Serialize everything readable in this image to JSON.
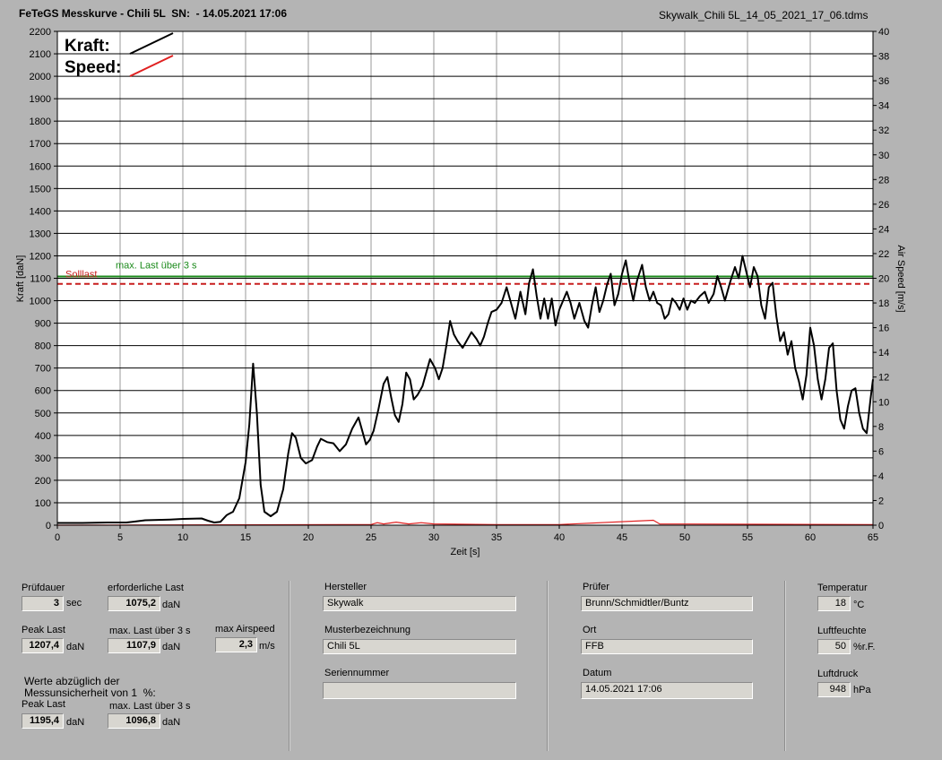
{
  "window": {
    "title": "FeTeGS Messkurve - Chili 5L  SN:  - 14.05.2021 17:06",
    "filename": "Skywalk_Chili 5L_14_05_2021_17_06.tdms"
  },
  "chart_data": {
    "type": "line",
    "xlabel": "Zeit [s]",
    "ylabel": "Kraft [daN]",
    "y2label": "Air Speed [m/s]",
    "xlim": [
      0,
      65
    ],
    "ylim": [
      0,
      2200
    ],
    "y2lim": [
      0,
      40
    ],
    "xticks": [
      "0",
      "5",
      "10",
      "15",
      "20",
      "25",
      "30",
      "35",
      "40",
      "45",
      "50",
      "55",
      "60",
      "65"
    ],
    "yticks": [
      "0",
      "100",
      "200",
      "300",
      "400",
      "500",
      "600",
      "700",
      "800",
      "900",
      "1000",
      "1100",
      "1200",
      "1300",
      "1400",
      "1500",
      "1600",
      "1700",
      "1800",
      "1900",
      "2000",
      "2100",
      "2200"
    ],
    "y2ticks": [
      "0",
      "2",
      "4",
      "6",
      "8",
      "10",
      "12",
      "14",
      "16",
      "18",
      "20",
      "22",
      "24",
      "26",
      "28",
      "30",
      "32",
      "34",
      "36",
      "38",
      "40"
    ],
    "grid": true,
    "legend": [
      "Kraft:",
      "Speed:"
    ],
    "legend_colors": [
      "#000000",
      "#e02020"
    ],
    "reference_lines": [
      {
        "name": "max. Last über  3 s",
        "value": 1107.9,
        "color": "#1a8a1a",
        "style": "solid"
      },
      {
        "name": "Solllast",
        "value": 1075.2,
        "color": "#c81e1e",
        "style": "dashed"
      }
    ],
    "series": [
      {
        "name": "Kraft:",
        "color": "#000000",
        "points": [
          [
            0,
            10
          ],
          [
            2,
            10
          ],
          [
            4,
            12
          ],
          [
            5.5,
            12
          ],
          [
            6,
            15
          ],
          [
            7,
            22
          ],
          [
            9,
            25
          ],
          [
            10,
            28
          ],
          [
            11.5,
            30
          ],
          [
            12,
            20
          ],
          [
            12.5,
            12
          ],
          [
            13,
            15
          ],
          [
            13.5,
            45
          ],
          [
            14,
            60
          ],
          [
            14.5,
            120
          ],
          [
            15,
            280
          ],
          [
            15.3,
            450
          ],
          [
            15.6,
            720
          ],
          [
            15.9,
            500
          ],
          [
            16.2,
            180
          ],
          [
            16.5,
            60
          ],
          [
            17,
            40
          ],
          [
            17.5,
            60
          ],
          [
            18,
            160
          ],
          [
            18.4,
            320
          ],
          [
            18.7,
            410
          ],
          [
            19,
            390
          ],
          [
            19.4,
            300
          ],
          [
            19.8,
            275
          ],
          [
            20.3,
            290
          ],
          [
            20.7,
            350
          ],
          [
            21,
            385
          ],
          [
            21.5,
            370
          ],
          [
            22,
            365
          ],
          [
            22.5,
            330
          ],
          [
            23,
            360
          ],
          [
            23.5,
            430
          ],
          [
            24,
            480
          ],
          [
            24.3,
            420
          ],
          [
            24.6,
            360
          ],
          [
            24.9,
            380
          ],
          [
            25.2,
            420
          ],
          [
            25.6,
            520
          ],
          [
            26,
            630
          ],
          [
            26.3,
            660
          ],
          [
            26.6,
            570
          ],
          [
            26.9,
            490
          ],
          [
            27.2,
            460
          ],
          [
            27.5,
            540
          ],
          [
            27.8,
            680
          ],
          [
            28.1,
            650
          ],
          [
            28.4,
            560
          ],
          [
            28.7,
            580
          ],
          [
            29.1,
            620
          ],
          [
            29.4,
            680
          ],
          [
            29.7,
            740
          ],
          [
            30.1,
            700
          ],
          [
            30.4,
            650
          ],
          [
            30.7,
            700
          ],
          [
            31,
            800
          ],
          [
            31.3,
            910
          ],
          [
            31.6,
            850
          ],
          [
            31.9,
            820
          ],
          [
            32.3,
            790
          ],
          [
            32.6,
            820
          ],
          [
            33,
            860
          ],
          [
            33.4,
            830
          ],
          [
            33.7,
            800
          ],
          [
            34,
            840
          ],
          [
            34.3,
            900
          ],
          [
            34.6,
            950
          ],
          [
            35,
            960
          ],
          [
            35.4,
            990
          ],
          [
            35.8,
            1060
          ],
          [
            36.1,
            1000
          ],
          [
            36.5,
            920
          ],
          [
            36.9,
            1040
          ],
          [
            37.3,
            940
          ],
          [
            37.6,
            1080
          ],
          [
            37.9,
            1140
          ],
          [
            38.2,
            1020
          ],
          [
            38.5,
            920
          ],
          [
            38.8,
            1010
          ],
          [
            39.1,
            920
          ],
          [
            39.4,
            1010
          ],
          [
            39.7,
            890
          ],
          [
            40,
            960
          ],
          [
            40.3,
            1000
          ],
          [
            40.6,
            1040
          ],
          [
            40.9,
            990
          ],
          [
            41.2,
            920
          ],
          [
            41.6,
            990
          ],
          [
            42,
            910
          ],
          [
            42.3,
            880
          ],
          [
            42.6,
            980
          ],
          [
            42.9,
            1060
          ],
          [
            43.2,
            950
          ],
          [
            43.5,
            1000
          ],
          [
            43.8,
            1070
          ],
          [
            44.1,
            1120
          ],
          [
            44.4,
            980
          ],
          [
            44.7,
            1030
          ],
          [
            45,
            1120
          ],
          [
            45.3,
            1180
          ],
          [
            45.6,
            1080
          ],
          [
            45.9,
            1000
          ],
          [
            46.2,
            1090
          ],
          [
            46.6,
            1160
          ],
          [
            46.9,
            1060
          ],
          [
            47.2,
            1000
          ],
          [
            47.5,
            1040
          ],
          [
            47.8,
            990
          ],
          [
            48.1,
            980
          ],
          [
            48.4,
            920
          ],
          [
            48.7,
            940
          ],
          [
            49,
            1010
          ],
          [
            49.3,
            990
          ],
          [
            49.6,
            960
          ],
          [
            49.9,
            1010
          ],
          [
            50.2,
            960
          ],
          [
            50.5,
            1000
          ],
          [
            50.8,
            990
          ],
          [
            51.2,
            1020
          ],
          [
            51.6,
            1040
          ],
          [
            51.9,
            990
          ],
          [
            52.3,
            1030
          ],
          [
            52.6,
            1110
          ],
          [
            52.9,
            1060
          ],
          [
            53.2,
            1000
          ],
          [
            53.6,
            1080
          ],
          [
            54,
            1150
          ],
          [
            54.3,
            1100
          ],
          [
            54.6,
            1200
          ],
          [
            54.9,
            1130
          ],
          [
            55.2,
            1060
          ],
          [
            55.5,
            1150
          ],
          [
            55.8,
            1110
          ],
          [
            56.1,
            980
          ],
          [
            56.4,
            920
          ],
          [
            56.7,
            1060
          ],
          [
            57,
            1080
          ],
          [
            57.3,
            930
          ],
          [
            57.6,
            820
          ],
          [
            57.9,
            860
          ],
          [
            58.2,
            760
          ],
          [
            58.5,
            820
          ],
          [
            58.8,
            700
          ],
          [
            59.1,
            640
          ],
          [
            59.4,
            560
          ],
          [
            59.7,
            670
          ],
          [
            60,
            880
          ],
          [
            60.3,
            800
          ],
          [
            60.6,
            650
          ],
          [
            60.9,
            560
          ],
          [
            61.2,
            650
          ],
          [
            61.5,
            790
          ],
          [
            61.8,
            810
          ],
          [
            62.1,
            600
          ],
          [
            62.4,
            470
          ],
          [
            62.7,
            430
          ],
          [
            63,
            530
          ],
          [
            63.3,
            600
          ],
          [
            63.6,
            610
          ],
          [
            63.9,
            500
          ],
          [
            64.2,
            430
          ],
          [
            64.5,
            410
          ],
          [
            64.8,
            560
          ],
          [
            65,
            650
          ]
        ]
      },
      {
        "name": "Speed:",
        "color": "#e02020",
        "points": [
          [
            0,
            0
          ],
          [
            25,
            0.05
          ],
          [
            25.5,
            0.2
          ],
          [
            26,
            0.1
          ],
          [
            27,
            0.25
          ],
          [
            28,
            0.1
          ],
          [
            29,
            0.2
          ],
          [
            30,
            0.1
          ],
          [
            35,
            0.05
          ],
          [
            40,
            0.05
          ],
          [
            47.5,
            0.4
          ],
          [
            48,
            0.1
          ],
          [
            65,
            0.05
          ]
        ]
      }
    ]
  },
  "panel": {
    "pruefdauer": {
      "label": "Prüfdauer",
      "value": "3",
      "unit": "sec"
    },
    "erforderliche_last": {
      "label": "erforderliche Last",
      "value": "1075,2",
      "unit": "daN"
    },
    "peak_last": {
      "label": "Peak Last",
      "value": "1207,4",
      "unit": "daN"
    },
    "max_last_3s": {
      "label": "max. Last über  3 s",
      "value": "1107,9",
      "unit": "daN"
    },
    "max_airspeed": {
      "label": "max Airspeed",
      "value": "2,3",
      "unit": "m/s"
    },
    "werte_note": "Werte abzüglich der\nMessunsicherheit von 1  %:",
    "peak_last_adj": {
      "label": "Peak Last",
      "value": "1195,4",
      "unit": "daN"
    },
    "max_last_3s_adj": {
      "label": "max. Last über  3 s",
      "value": "1096,8",
      "unit": "daN"
    },
    "hersteller": {
      "label": "Hersteller",
      "value": "Skywalk"
    },
    "musterbezeichnung": {
      "label": "Musterbezeichnung",
      "value": "Chili 5L"
    },
    "seriennummer": {
      "label": "Seriennummer",
      "value": ""
    },
    "pruefer": {
      "label": "Prüfer",
      "value": "Brunn/Schmidtler/Buntz"
    },
    "ort": {
      "label": "Ort",
      "value": "FFB"
    },
    "datum": {
      "label": "Datum",
      "value": "14.05.2021 17:06"
    },
    "temperatur": {
      "label": "Temperatur",
      "value": "18",
      "unit": "°C"
    },
    "luftfeuchte": {
      "label": "Luftfeuchte",
      "value": "50",
      "unit": "%r.F."
    },
    "luftdruck": {
      "label": "Luftdruck",
      "value": "948",
      "unit": "hPa"
    }
  }
}
